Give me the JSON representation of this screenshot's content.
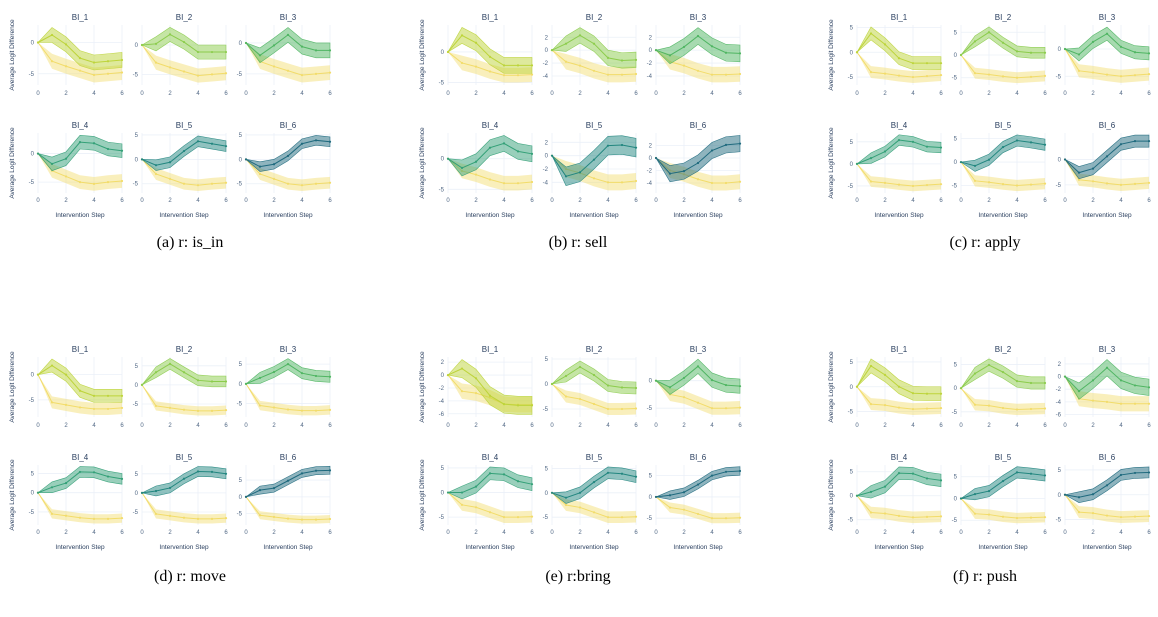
{
  "chart_data": {
    "type": "line",
    "xlabel": "Intervention Step",
    "ylabel": "Average Logit Difference",
    "x": [
      0,
      1,
      2,
      3,
      4,
      5,
      6
    ],
    "xticks": [
      0,
      2,
      4,
      6
    ],
    "bi_colors": [
      "#bdd43a",
      "#8ccc4c",
      "#4fb562",
      "#33a077",
      "#22867f",
      "#1f6a7e"
    ],
    "baseline_color": "#f2dc6a",
    "panels": [
      {
        "caption": "(a) r: is_in",
        "subplots": [
          {
            "title": "BI_1",
            "mean": [
              0,
              1.2,
              -0.3,
              -2.5,
              -3.2,
              -3,
              -2.8
            ],
            "band": 1.2,
            "baseline": [
              0,
              -3,
              -3.8,
              -4.5,
              -5.2,
              -5,
              -4.8
            ],
            "yticks": [
              0,
              -5
            ]
          },
          {
            "title": "BI_2",
            "mean": [
              0,
              0.2,
              1.8,
              0.5,
              -1.2,
              -1.2,
              -1.2
            ],
            "band": 1.2,
            "baseline": [
              0,
              -3,
              -3.8,
              -4.5,
              -5.2,
              -5,
              -4.8
            ],
            "yticks": [
              0,
              -5
            ]
          },
          {
            "title": "BI_3",
            "mean": [
              0,
              -2,
              -0.4,
              1.3,
              -0.6,
              -1.2,
              -1.2
            ],
            "band": 1.2,
            "baseline": [
              0,
              -3,
              -3.8,
              -4.5,
              -5.2,
              -5,
              -4.8
            ],
            "yticks": [
              0,
              -5
            ]
          },
          {
            "title": "BI_4",
            "mean": [
              0,
              -1.8,
              -0.9,
              2,
              1.8,
              0.8,
              0.5
            ],
            "band": 1.2,
            "baseline": [
              0,
              -3,
              -4,
              -5,
              -5.3,
              -5,
              -4.8
            ],
            "yticks": [
              0,
              -5
            ]
          },
          {
            "title": "BI_5",
            "mean": [
              0,
              -1.2,
              -0.6,
              1.7,
              3.7,
              3.2,
              2.7
            ],
            "band": 1.1,
            "baseline": [
              0,
              -3,
              -4,
              -5,
              -5.3,
              -5,
              -4.8
            ],
            "yticks": [
              5,
              0,
              -5
            ]
          },
          {
            "title": "BI_6",
            "mean": [
              0,
              -1.5,
              -1,
              0.7,
              3.2,
              3.9,
              3.6
            ],
            "band": 1.0,
            "baseline": [
              0,
              -3,
              -4,
              -5,
              -5.3,
              -5,
              -4.8
            ],
            "yticks": [
              5,
              0,
              -5
            ]
          }
        ]
      },
      {
        "caption": "(b) r: sell",
        "subplots": [
          {
            "title": "BI_1",
            "mean": [
              0,
              2.7,
              1.5,
              -0.8,
              -2.2,
              -2.2,
              -2.2
            ],
            "band": 1.3,
            "baseline": [
              0,
              -1.8,
              -2.4,
              -3.2,
              -3.8,
              -3.8,
              -3.7
            ],
            "yticks": [
              0,
              -5
            ]
          },
          {
            "title": "BI_2",
            "mean": [
              0,
              1,
              2.3,
              1,
              -1.2,
              -1.6,
              -1.5
            ],
            "band": 1.2,
            "baseline": [
              0,
              -1.8,
              -2.4,
              -3.2,
              -3.8,
              -3.8,
              -3.7
            ],
            "yticks": [
              2,
              0,
              -2,
              -4
            ]
          },
          {
            "title": "BI_3",
            "mean": [
              0,
              -0.8,
              0.5,
              2.2,
              0.6,
              -0.4,
              -0.5
            ],
            "band": 1.3,
            "baseline": [
              0,
              -1.8,
              -2.4,
              -3.2,
              -3.8,
              -3.8,
              -3.7
            ],
            "yticks": [
              2,
              0,
              -2,
              -4
            ]
          },
          {
            "title": "BI_4",
            "mean": [
              0,
              -1.5,
              -0.5,
              1.8,
              2.5,
              1.2,
              0.8
            ],
            "band": 1.3,
            "baseline": [
              0,
              -2,
              -2.6,
              -3.4,
              -4,
              -4,
              -3.8
            ],
            "yticks": [
              0,
              -5
            ]
          },
          {
            "title": "BI_5",
            "mean": [
              0,
              -3.1,
              -2.5,
              -0.6,
              1.5,
              1.6,
              1.2
            ],
            "band": 1.4,
            "baseline": [
              0,
              -2,
              -2.6,
              -3.4,
              -4,
              -4,
              -3.8
            ],
            "yticks": [
              2,
              0,
              -2,
              -4
            ]
          },
          {
            "title": "BI_6",
            "mean": [
              0,
              -2.5,
              -2.1,
              -0.8,
              1.2,
              2.1,
              2.3
            ],
            "band": 1.3,
            "baseline": [
              0,
              -2,
              -2.6,
              -3.4,
              -4,
              -4,
              -3.8
            ],
            "yticks": [
              2,
              0,
              -2,
              -4
            ]
          }
        ]
      },
      {
        "caption": "(c) r: apply",
        "subplots": [
          {
            "title": "BI_1",
            "mean": [
              0,
              3.8,
              1.6,
              -1.2,
              -2.2,
              -2.2,
              -2.2
            ],
            "band": 1.3,
            "baseline": [
              0,
              -4,
              -4.3,
              -4.7,
              -5,
              -4.8,
              -4.6
            ],
            "yticks": [
              5,
              0,
              -5
            ]
          },
          {
            "title": "BI_2",
            "mean": [
              0,
              3,
              5,
              2.7,
              0.8,
              0.5,
              0.5
            ],
            "band": 1.2,
            "baseline": [
              0,
              -4,
              -4.3,
              -4.7,
              -5,
              -4.8,
              -4.6
            ],
            "yticks": [
              5,
              0,
              -5
            ]
          },
          {
            "title": "BI_3",
            "mean": [
              0,
              -1,
              1.3,
              2.8,
              0.4,
              -0.6,
              -0.8
            ],
            "band": 1.2,
            "baseline": [
              0,
              -4,
              -4.3,
              -4.7,
              -5,
              -4.8,
              -4.6
            ],
            "yticks": [
              0,
              -5
            ]
          },
          {
            "title": "BI_4",
            "mean": [
              0,
              1.3,
              2.8,
              5.4,
              5,
              3.9,
              3.7
            ],
            "band": 1.2,
            "baseline": [
              0,
              -4,
              -4.3,
              -4.7,
              -5,
              -4.8,
              -4.6
            ],
            "yticks": [
              5,
              0,
              -5
            ]
          },
          {
            "title": "BI_5",
            "mean": [
              0,
              -0.8,
              0.5,
              3.2,
              4.6,
              4.2,
              3.7
            ],
            "band": 1.2,
            "baseline": [
              0,
              -4,
              -4.3,
              -4.7,
              -5,
              -4.8,
              -4.6
            ],
            "yticks": [
              5,
              0,
              -5
            ]
          },
          {
            "title": "BI_6",
            "mean": [
              0,
              -2.6,
              -1.8,
              0.6,
              3,
              3.6,
              3.6
            ],
            "band": 1.2,
            "baseline": [
              0,
              -4,
              -4.3,
              -4.7,
              -5,
              -4.8,
              -4.6
            ],
            "yticks": [
              0,
              -5
            ]
          }
        ]
      },
      {
        "caption": "(d) r: move",
        "subplots": [
          {
            "title": "BI_1",
            "mean": [
              0,
              1.8,
              0,
              -3.2,
              -4.2,
              -4.2,
              -4.2
            ],
            "band": 1.3,
            "baseline": [
              0,
              -5.5,
              -6,
              -6.5,
              -6.8,
              -6.8,
              -6.6
            ],
            "yticks": [
              0,
              -5
            ]
          },
          {
            "title": "BI_2",
            "mean": [
              0,
              3.3,
              5.5,
              3.3,
              1.2,
              0.9,
              0.9
            ],
            "band": 1.4,
            "baseline": [
              0,
              -5.5,
              -6,
              -6.5,
              -6.8,
              -6.8,
              -6.6
            ],
            "yticks": [
              5,
              0,
              -5
            ]
          },
          {
            "title": "BI_3",
            "mean": [
              0,
              1.5,
              3,
              5,
              2.7,
              2,
              1.8
            ],
            "band": 1.4,
            "baseline": [
              0,
              -5.5,
              -6,
              -6.5,
              -6.8,
              -6.8,
              -6.6
            ],
            "yticks": [
              5,
              0,
              -5
            ]
          },
          {
            "title": "BI_4",
            "mean": [
              0,
              1.4,
              2.5,
              5.4,
              5.3,
              4.2,
              3.6
            ],
            "band": 1.4,
            "baseline": [
              0,
              -5.5,
              -6,
              -6.5,
              -6.8,
              -6.8,
              -6.6
            ],
            "yticks": [
              5,
              0,
              -5
            ]
          },
          {
            "title": "BI_5",
            "mean": [
              0,
              0.5,
              1.3,
              3.7,
              5.6,
              5.5,
              5
            ],
            "band": 1.3,
            "baseline": [
              0,
              -5.5,
              -6,
              -6.5,
              -6.8,
              -6.8,
              -6.6
            ],
            "yticks": [
              5,
              0,
              -5
            ]
          },
          {
            "title": "BI_6",
            "mean": [
              0,
              2,
              2.6,
              4.8,
              7,
              7.8,
              7.9
            ],
            "band": 1.2,
            "baseline": [
              0,
              -5.5,
              -6,
              -6.5,
              -6.8,
              -6.8,
              -6.6
            ],
            "yticks": [
              5,
              0,
              -5
            ]
          }
        ]
      },
      {
        "caption": "(e) r:bring",
        "subplots": [
          {
            "title": "BI_1",
            "mean": [
              0,
              1,
              -0.5,
              -3.2,
              -4.5,
              -4.7,
              -4.7
            ],
            "band": 1.4,
            "baseline": [
              0,
              -2.5,
              -2.8,
              -3.5,
              -4.5,
              -4.6,
              -4.6
            ],
            "yticks": [
              2,
              0,
              -2,
              -4,
              -6
            ]
          },
          {
            "title": "BI_2",
            "mean": [
              0,
              1.6,
              3.4,
              1.8,
              -0.3,
              -0.7,
              -0.8
            ],
            "band": 1.2,
            "baseline": [
              0,
              -2.5,
              -3,
              -4,
              -5,
              -5,
              -4.9
            ],
            "yticks": [
              5,
              0,
              -5
            ]
          },
          {
            "title": "BI_3",
            "mean": [
              0,
              -1.2,
              0.5,
              2.6,
              0.1,
              -0.8,
              -1
            ],
            "band": 1.3,
            "baseline": [
              0,
              -2.5,
              -3,
              -4,
              -5,
              -5,
              -4.9
            ],
            "yticks": [
              0,
              -5
            ]
          },
          {
            "title": "BI_4",
            "mean": [
              0,
              0,
              1.2,
              3.9,
              3.7,
              2.3,
              1.7
            ],
            "band": 1.3,
            "baseline": [
              0,
              -2.5,
              -3,
              -4,
              -5,
              -5,
              -4.9
            ],
            "yticks": [
              5,
              0,
              -5
            ]
          },
          {
            "title": "BI_5",
            "mean": [
              0,
              -1,
              0,
              2.2,
              4.1,
              3.9,
              3.3
            ],
            "band": 1.2,
            "baseline": [
              0,
              -2.5,
              -3,
              -4,
              -5,
              -5,
              -4.9
            ],
            "yticks": [
              5,
              0,
              -5
            ]
          },
          {
            "title": "BI_6",
            "mean": [
              0,
              0.4,
              1.1,
              2.9,
              5,
              5.9,
              6.1
            ],
            "band": 1.0,
            "baseline": [
              0,
              -2.5,
              -3,
              -4,
              -5,
              -5,
              -4.9
            ],
            "yticks": [
              5,
              0,
              -5
            ]
          }
        ]
      },
      {
        "caption": "(f) r: push",
        "subplots": [
          {
            "title": "BI_1",
            "mean": [
              0,
              4.2,
              2.4,
              0,
              -1.3,
              -1.4,
              -1.4
            ],
            "band": 1.4,
            "baseline": [
              0,
              -3.5,
              -3.7,
              -4.2,
              -4.5,
              -4.4,
              -4.3
            ],
            "yticks": [
              5,
              0,
              -5
            ]
          },
          {
            "title": "BI_2",
            "mean": [
              0,
              3.1,
              4.9,
              3.4,
              1.5,
              1.1,
              1.1
            ],
            "band": 1.3,
            "baseline": [
              0,
              -3.5,
              -3.7,
              -4.2,
              -4.5,
              -4.4,
              -4.3
            ],
            "yticks": [
              5,
              0,
              -5
            ]
          },
          {
            "title": "BI_3",
            "mean": [
              0,
              -2.3,
              -0.6,
              1.4,
              -0.6,
              -1.4,
              -1.7
            ],
            "band": 1.3,
            "baseline": [
              0,
              -3.5,
              -3.8,
              -4,
              -4.3,
              -4.3,
              -4.3
            ],
            "yticks": [
              2,
              0,
              -2,
              -4,
              -6
            ]
          },
          {
            "title": "BI_4",
            "mean": [
              0,
              0.8,
              1.9,
              4.7,
              4.6,
              3.6,
              3.2
            ],
            "band": 1.3,
            "baseline": [
              0,
              -3.5,
              -3.7,
              -4.2,
              -4.5,
              -4.4,
              -4.3
            ],
            "yticks": [
              5,
              0,
              -5
            ]
          },
          {
            "title": "BI_5",
            "mean": [
              0,
              1,
              1.7,
              4,
              6,
              5.7,
              5.3
            ],
            "band": 1.3,
            "baseline": [
              0,
              -3.5,
              -3.7,
              -4.2,
              -4.5,
              -4.4,
              -4.3
            ],
            "yticks": [
              5,
              0,
              -5
            ]
          },
          {
            "title": "BI_6",
            "mean": [
              0,
              -0.5,
              0.1,
              1.9,
              4,
              4.4,
              4.5
            ],
            "band": 1.1,
            "baseline": [
              0,
              -3.5,
              -3.7,
              -4.2,
              -4.5,
              -4.4,
              -4.3
            ],
            "yticks": [
              5,
              0,
              -5
            ]
          }
        ]
      }
    ]
  }
}
